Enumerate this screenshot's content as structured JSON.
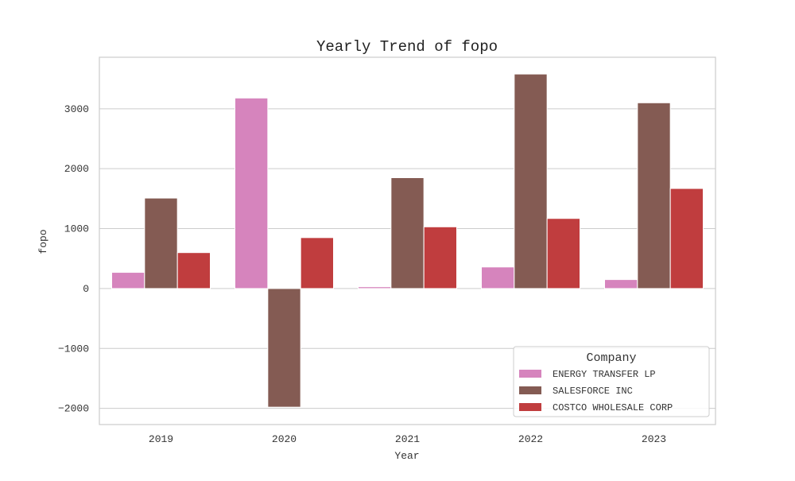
{
  "chart_data": {
    "type": "bar",
    "title": "Yearly Trend of fopo",
    "xlabel": "Year",
    "ylabel": "fopo",
    "categories": [
      "2019",
      "2020",
      "2021",
      "2022",
      "2023"
    ],
    "ylim": [
      -2270,
      3860
    ],
    "yticks": [
      -2000,
      -1000,
      0,
      1000,
      2000,
      3000
    ],
    "ytick_labels": [
      "−2000",
      "−1000",
      "0",
      "1000",
      "2000",
      "3000"
    ],
    "grid": true,
    "legend": {
      "title": "Company",
      "placement": "lower-right"
    },
    "series": [
      {
        "name": "ENERGY TRANSFER LP",
        "color": "#d684bd",
        "values": [
          270,
          3180,
          30,
          360,
          150
        ]
      },
      {
        "name": "SALESFORCE INC",
        "color": "#845b53",
        "values": [
          1510,
          -1980,
          1850,
          3580,
          3100
        ]
      },
      {
        "name": "COSTCO WHOLESALE CORP",
        "color": "#c03d3e",
        "values": [
          600,
          850,
          1030,
          1170,
          1670
        ]
      }
    ]
  }
}
